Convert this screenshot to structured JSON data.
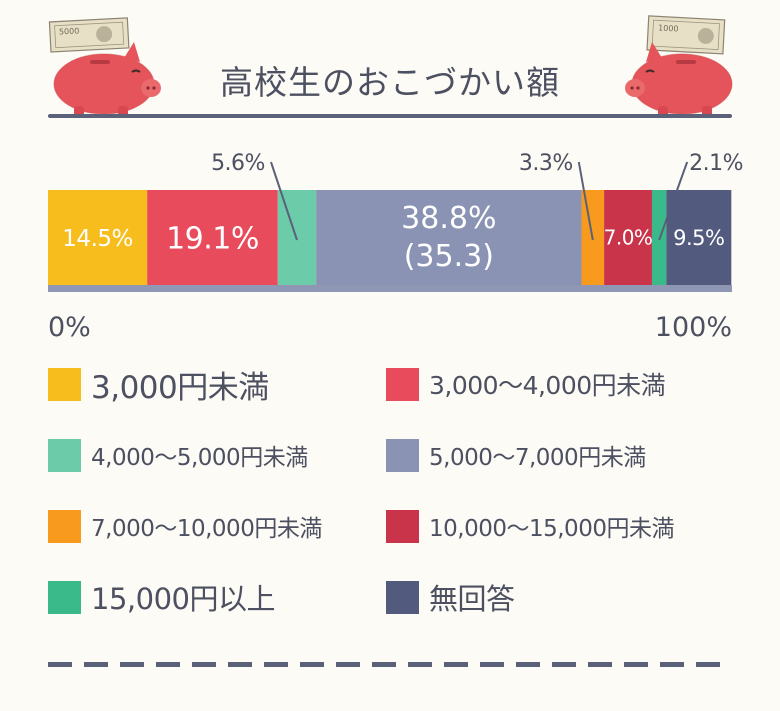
{
  "title": "高校生のおこづかい額",
  "colors": {
    "c3000": "#f6bd1d",
    "c3000_4000": "#e84b5c",
    "c4000_5000": "#6cccaa",
    "c5000_7000": "#8a93b3",
    "c7000_10000": "#f79a1e",
    "c10000_15000": "#c9344b",
    "c15000": "#3ab98a",
    "none": "#525a7e"
  },
  "axis": {
    "start_label": "0%",
    "end_label": "100%"
  },
  "chart_data": {
    "type": "bar",
    "orientation": "horizontal-stacked-100",
    "title": "高校生のおこづかい額",
    "unit": "%",
    "xlim": [
      0,
      100
    ],
    "segments": [
      {
        "name": "3,000円未満",
        "value": 14.5,
        "label": "14.5%",
        "color": "#f6bd1d"
      },
      {
        "name": "3,000〜4,000円未満",
        "value": 19.1,
        "label": "19.1%",
        "color": "#e84b5c"
      },
      {
        "name": "4,000〜5,000円未満",
        "value": 5.6,
        "label": "5.6%",
        "color": "#6cccaa"
      },
      {
        "name": "5,000〜7,000円未満",
        "value": 38.8,
        "label": "38.8%",
        "sub_label": "(35.3)",
        "color": "#8a93b3"
      },
      {
        "name": "7,000〜10,000円未満",
        "value": 3.3,
        "label": "3.3%",
        "color": "#f79a1e"
      },
      {
        "name": "10,000〜15,000円未満",
        "value": 7.0,
        "label": "7.0%",
        "color": "#c9344b"
      },
      {
        "name": "15,000円以上",
        "value": 2.1,
        "label": "2.1%",
        "color": "#3ab98a"
      },
      {
        "name": "無回答",
        "value": 9.5,
        "label": "9.5%",
        "color": "#525a7e"
      }
    ]
  },
  "legend": [
    {
      "label": "3,000円未満",
      "color": "#f6bd1d"
    },
    {
      "label": "3,000〜4,000円未満",
      "color": "#e84b5c"
    },
    {
      "label": "4,000〜5,000円未満",
      "color": "#6cccaa"
    },
    {
      "label": "5,000〜7,000円未満",
      "color": "#8a93b3"
    },
    {
      "label": "7,000〜10,000円未満",
      "color": "#f79a1e"
    },
    {
      "label": "10,000〜15,000円未満",
      "color": "#c9344b"
    },
    {
      "label": "15,000円以上",
      "color": "#3ab98a"
    },
    {
      "label": "無回答",
      "color": "#525a7e"
    }
  ],
  "banknotes": {
    "left": "5000",
    "right": "1000"
  }
}
